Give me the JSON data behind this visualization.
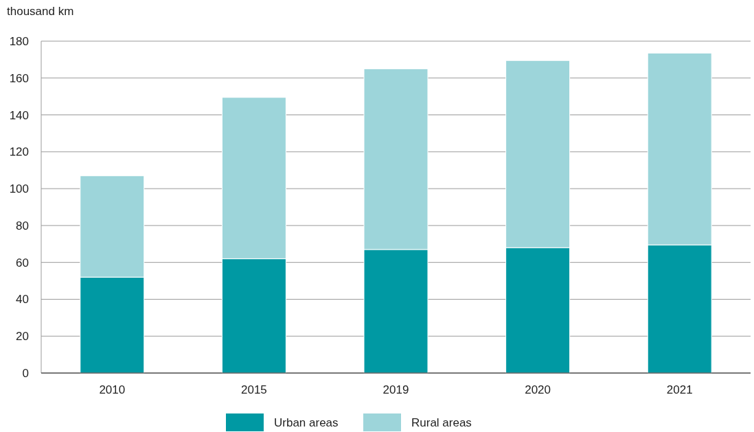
{
  "chart_data": {
    "type": "bar",
    "ylabel": "thousand km",
    "categories": [
      "2010",
      "2015",
      "2019",
      "2020",
      "2021"
    ],
    "stacked": true,
    "series": [
      {
        "name": "Urban areas",
        "color": "#0099a3",
        "values": [
          52,
          62,
          67,
          68,
          69.5
        ]
      },
      {
        "name": "Rural areas",
        "color": "#9dd5da",
        "values": [
          55,
          87.5,
          98,
          101.5,
          104
        ]
      }
    ],
    "ylim": [
      0,
      180
    ],
    "yticks": [
      0,
      20,
      40,
      60,
      80,
      100,
      120,
      140,
      160,
      180
    ],
    "grid": "y",
    "legend": "bottom"
  }
}
